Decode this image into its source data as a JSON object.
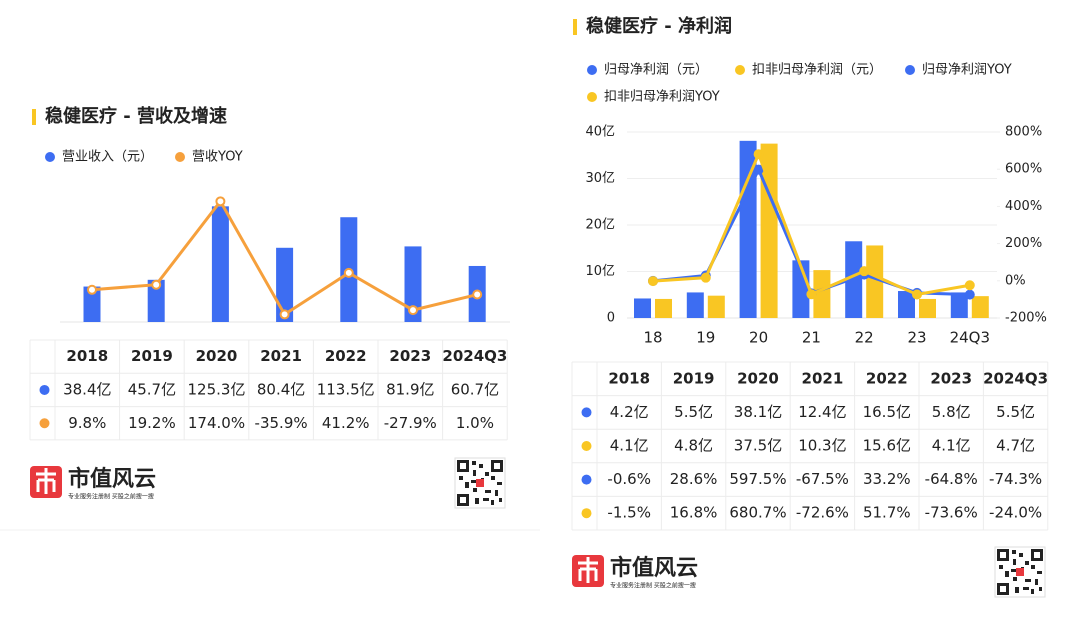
{
  "chart_data": [
    {
      "type": "combo",
      "title": "稳健医疗 - 营收及增速",
      "series": [
        {
          "name": "营业收入（元）",
          "type": "bar",
          "color": "#3d6df2",
          "values": [
            38.4,
            45.7,
            125.3,
            80.4,
            113.5,
            81.9,
            60.7
          ]
        },
        {
          "name": "营收YOY",
          "type": "line",
          "axis": "y2",
          "marker": "hollow",
          "color": "#f6a03c",
          "values": [
            9.8,
            19.2,
            174.0,
            -35.9,
            41.2,
            -27.9,
            1.0
          ]
        }
      ],
      "ylim": [
        0,
        143
      ],
      "y2lim": [
        -50,
        195
      ]
    },
    {
      "type": "combo",
      "title": "稳健医疗 - 净利润",
      "categories": [
        "18",
        "19",
        "20",
        "21",
        "22",
        "23",
        "24Q3"
      ],
      "series": [
        {
          "name": "归母净利润（元）",
          "type": "bar",
          "color": "#3d6df2",
          "values": [
            4.2,
            5.5,
            38.1,
            12.4,
            16.5,
            5.8,
            5.5
          ]
        },
        {
          "name": "扣非归母净利润（元）",
          "type": "bar",
          "color": "#f9c623",
          "values": [
            4.1,
            4.8,
            37.5,
            10.3,
            15.6,
            4.1,
            4.7
          ]
        },
        {
          "name": "归母净利润YOY",
          "type": "line",
          "axis": "y2",
          "marker": "filled",
          "color": "#3d6df2",
          "values": [
            -0.6,
            28.6,
            597.5,
            -67.5,
            33.2,
            -64.8,
            -74.3
          ]
        },
        {
          "name": "扣非归母净利润YOY",
          "type": "line",
          "axis": "y2",
          "marker": "filled",
          "color": "#f9c623",
          "values": [
            -1.5,
            16.8,
            680.7,
            -72.6,
            51.7,
            -73.6,
            -24.0
          ]
        }
      ],
      "ylim": [
        0,
        40
      ],
      "yticks": [
        0,
        {
          "value": 10,
          "label": "10亿"
        },
        {
          "value": 20,
          "label": "20亿"
        },
        {
          "value": 30,
          "label": "30亿"
        },
        {
          "value": 40,
          "label": "40亿"
        }
      ],
      "y2lim": [
        -200,
        800
      ],
      "y2ticks": [
        {
          "value": -200,
          "label": "-200%"
        },
        {
          "value": 0,
          "label": "0%"
        },
        {
          "value": 200,
          "label": "200%"
        },
        {
          "value": 400,
          "label": "400%"
        },
        {
          "value": 600,
          "label": "600%"
        },
        {
          "value": 800,
          "label": "800%"
        }
      ],
      "grid": true
    }
  ],
  "tables": [
    {
      "header": [
        "2018",
        "2019",
        "2020",
        "2021",
        "2022",
        "2023",
        "2024Q3"
      ],
      "rows": [
        [
          "38.4亿",
          "45.7亿",
          "125.3亿",
          "80.4亿",
          "113.5亿",
          "81.9亿",
          "60.7亿"
        ],
        [
          "9.8%",
          "19.2%",
          "174.0%",
          "-35.9%",
          "41.2%",
          "-27.9%",
          "1.0%"
        ]
      ]
    },
    {
      "header": [
        "2018",
        "2019",
        "2020",
        "2021",
        "2022",
        "2023",
        "2024Q3"
      ],
      "rows": [
        [
          "4.2亿",
          "5.5亿",
          "38.1亿",
          "12.4亿",
          "16.5亿",
          "5.8亿",
          "5.5亿"
        ],
        [
          "4.1亿",
          "4.8亿",
          "37.5亿",
          "10.3亿",
          "15.6亿",
          "4.1亿",
          "4.7亿"
        ],
        [
          "-0.6%",
          "28.6%",
          "597.5%",
          "-67.5%",
          "33.2%",
          "-64.8%",
          "-74.3%"
        ],
        [
          "-1.5%",
          "16.8%",
          "680.7%",
          "-72.6%",
          "51.7%",
          "-73.6%",
          "-24.0%"
        ]
      ]
    }
  ],
  "brand": {
    "name": "市值风云",
    "tagline": "专业服务注册制 买股之前搜一搜"
  }
}
